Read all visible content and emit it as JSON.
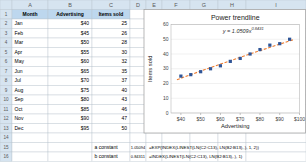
{
  "chart_data": {
    "type": "scatter",
    "title": "Power trendline",
    "xlabel": "Advertising",
    "ylabel": "Items sold",
    "series": [
      {
        "type": "scatter",
        "color": "#2F5597",
        "marker": "square",
        "x": [
          40,
          45,
          50,
          55,
          60,
          65,
          70,
          75,
          80,
          85,
          90,
          95
        ],
        "values": [
          25,
          26,
          28,
          30,
          32,
          35,
          37,
          40,
          43,
          46,
          47,
          50
        ]
      },
      {
        "type": "line",
        "color": "#ED7D31",
        "line_style": "dashed",
        "x": [
          38,
          50,
          60,
          70,
          80,
          90,
          97
        ],
        "values": [
          22.5688,
          28.4443,
          33.1708,
          37.7745,
          42.2758,
          46.6895,
          49.733
        ]
      }
    ],
    "annotations": [
      {
        "text": "y = 1.0509x",
        "exponent": "0.8431"
      }
    ],
    "xlim": [
      35,
      100
    ],
    "xticks": [
      {
        "value": 40,
        "label": "$40"
      },
      {
        "value": 50,
        "label": "$50"
      },
      {
        "value": 60,
        "label": "$60"
      },
      {
        "value": 70,
        "label": "$70"
      },
      {
        "value": 80,
        "label": "$80"
      },
      {
        "value": 90,
        "label": "$90"
      },
      {
        "value": 100,
        "label": "$100"
      }
    ],
    "ylim": [
      0,
      60
    ],
    "yticks": [
      0,
      10,
      20,
      30,
      40,
      50,
      60
    ],
    "grid": "y"
  },
  "sheet": {
    "column_letters": [
      "A",
      "B",
      "C",
      "D",
      "E",
      "F",
      "G",
      "H",
      "I"
    ],
    "row_numbers": [
      1,
      2,
      3,
      4,
      5,
      6,
      7,
      8,
      9,
      10,
      11,
      12,
      13,
      14,
      15,
      16
    ],
    "header_color": "#BDD7EE",
    "index_color": "#D6E4F0",
    "grid_color": "#B8C4CE",
    "rows": [
      [
        "Month",
        "Advertising",
        "Items sold",
        null,
        null
      ],
      [
        "Jan",
        "$40",
        "25",
        null,
        null
      ],
      [
        "Feb",
        "$45",
        "26",
        null,
        null
      ],
      [
        "Mar",
        "$50",
        "28",
        null,
        null
      ],
      [
        "Apr",
        "$55",
        "30",
        null,
        null
      ],
      [
        "May",
        "$60",
        "32",
        null,
        null
      ],
      [
        "Jun",
        "$65",
        "35",
        null,
        null
      ],
      [
        "Jul",
        "$70",
        "37",
        null,
        null
      ],
      [
        "Aug",
        "$75",
        "40",
        null,
        null
      ],
      [
        "Sep",
        "$80",
        "43",
        null,
        null
      ],
      [
        "Oct",
        "$85",
        "46",
        null,
        null
      ],
      [
        "Nov",
        "$90",
        "47",
        null,
        null
      ],
      [
        "Dec",
        "$95",
        "50",
        null,
        null
      ],
      [
        null,
        null,
        null,
        null,
        null
      ],
      [
        null,
        null,
        "a constant",
        "1.05094",
        "=EXP(INDEX(LINEST(LN(C2:C13), LN(B2:B13),.), 1, 2))"
      ],
      [
        null,
        null,
        "b constant",
        "0.84311",
        "=INDEX(LINEST(LN(C2:C13), LN(B2:B13),.), 1)"
      ]
    ]
  }
}
